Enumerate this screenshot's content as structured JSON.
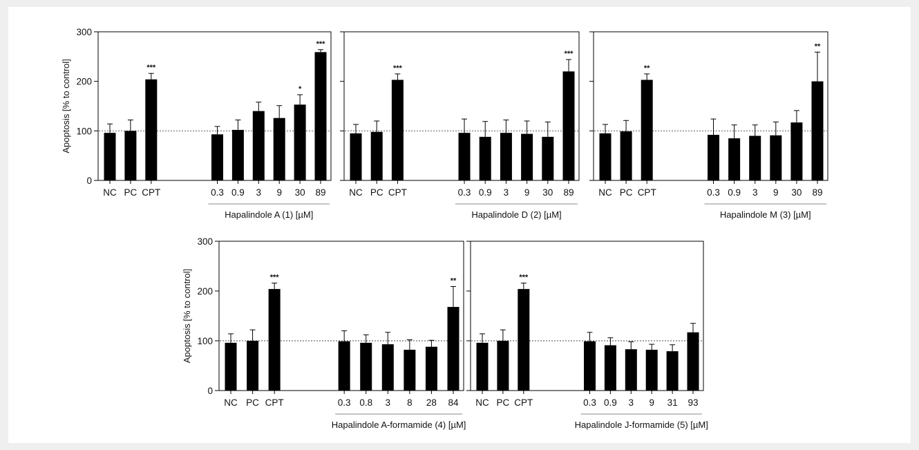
{
  "figure": {
    "ylabel": "Apoptosis [% to control]"
  },
  "chart_data": [
    {
      "type": "bar",
      "categories": [
        "NC",
        "PC",
        "CPT",
        "0.3",
        "0.9",
        "3",
        "9",
        "30",
        "89"
      ],
      "values": [
        96,
        100,
        204,
        93,
        102,
        140,
        126,
        153,
        259
      ],
      "errors": [
        18,
        22,
        12,
        16,
        20,
        18,
        25,
        20,
        5
      ],
      "significance": [
        "",
        "",
        "***",
        "",
        "",
        "",
        "",
        "*",
        "***"
      ],
      "group_label": "Hapalindole A (1) [µM]",
      "ylabel": "Apoptosis [% to control]",
      "yticks": [
        0,
        100,
        200,
        300
      ],
      "ylim": [
        0,
        300
      ],
      "reference_line": 100
    },
    {
      "type": "bar",
      "categories": [
        "NC",
        "PC",
        "CPT",
        "0.3",
        "0.9",
        "3",
        "9",
        "30",
        "89"
      ],
      "values": [
        95,
        98,
        203,
        96,
        88,
        96,
        94,
        88,
        220
      ],
      "errors": [
        18,
        22,
        12,
        28,
        31,
        26,
        26,
        30,
        24
      ],
      "significance": [
        "",
        "",
        "***",
        "",
        "",
        "",
        "",
        "",
        "***"
      ],
      "group_label": "Hapalindole D (2) [µM]",
      "yticks": [
        0,
        100,
        200,
        300
      ],
      "ylim": [
        0,
        300
      ],
      "reference_line": 100
    },
    {
      "type": "bar",
      "categories": [
        "NC",
        "PC",
        "CPT",
        "0.3",
        "0.9",
        "3",
        "9",
        "30",
        "89"
      ],
      "values": [
        95,
        99,
        203,
        92,
        85,
        90,
        91,
        117,
        200
      ],
      "errors": [
        18,
        22,
        12,
        32,
        27,
        22,
        27,
        24,
        59
      ],
      "significance": [
        "",
        "",
        "**",
        "",
        "",
        "",
        "",
        "",
        "**"
      ],
      "group_label": "Hapalindole M (3) [µM]",
      "yticks": [
        0,
        100,
        200,
        300
      ],
      "ylim": [
        0,
        300
      ],
      "reference_line": 100
    },
    {
      "type": "bar",
      "categories": [
        "NC",
        "PC",
        "CPT",
        "0.3",
        "0.8",
        "3",
        "8",
        "28",
        "84"
      ],
      "values": [
        96,
        100,
        204,
        99,
        96,
        93,
        82,
        88,
        168
      ],
      "errors": [
        18,
        22,
        12,
        21,
        16,
        24,
        20,
        13,
        41
      ],
      "significance": [
        "",
        "",
        "***",
        "",
        "",
        "",
        "",
        "",
        "**"
      ],
      "group_label": "Hapalindole A-formamide (4) [µM]",
      "ylabel": "Apoptosis [% to control]",
      "yticks": [
        0,
        100,
        200,
        300
      ],
      "ylim": [
        0,
        300
      ],
      "reference_line": 100
    },
    {
      "type": "bar",
      "categories": [
        "NC",
        "PC",
        "CPT",
        "0.3",
        "0.9",
        "3",
        "9",
        "31",
        "93"
      ],
      "values": [
        96,
        100,
        204,
        99,
        91,
        83,
        82,
        79,
        117
      ],
      "errors": [
        18,
        22,
        12,
        18,
        15,
        15,
        11,
        13,
        18
      ],
      "significance": [
        "",
        "",
        "***",
        "",
        "",
        "",
        "",
        "",
        ""
      ],
      "group_label": "Hapalindole J-formamide (5) [µM]",
      "yticks": [
        0,
        100,
        200,
        300
      ],
      "ylim": [
        0,
        300
      ],
      "reference_line": 100
    }
  ]
}
